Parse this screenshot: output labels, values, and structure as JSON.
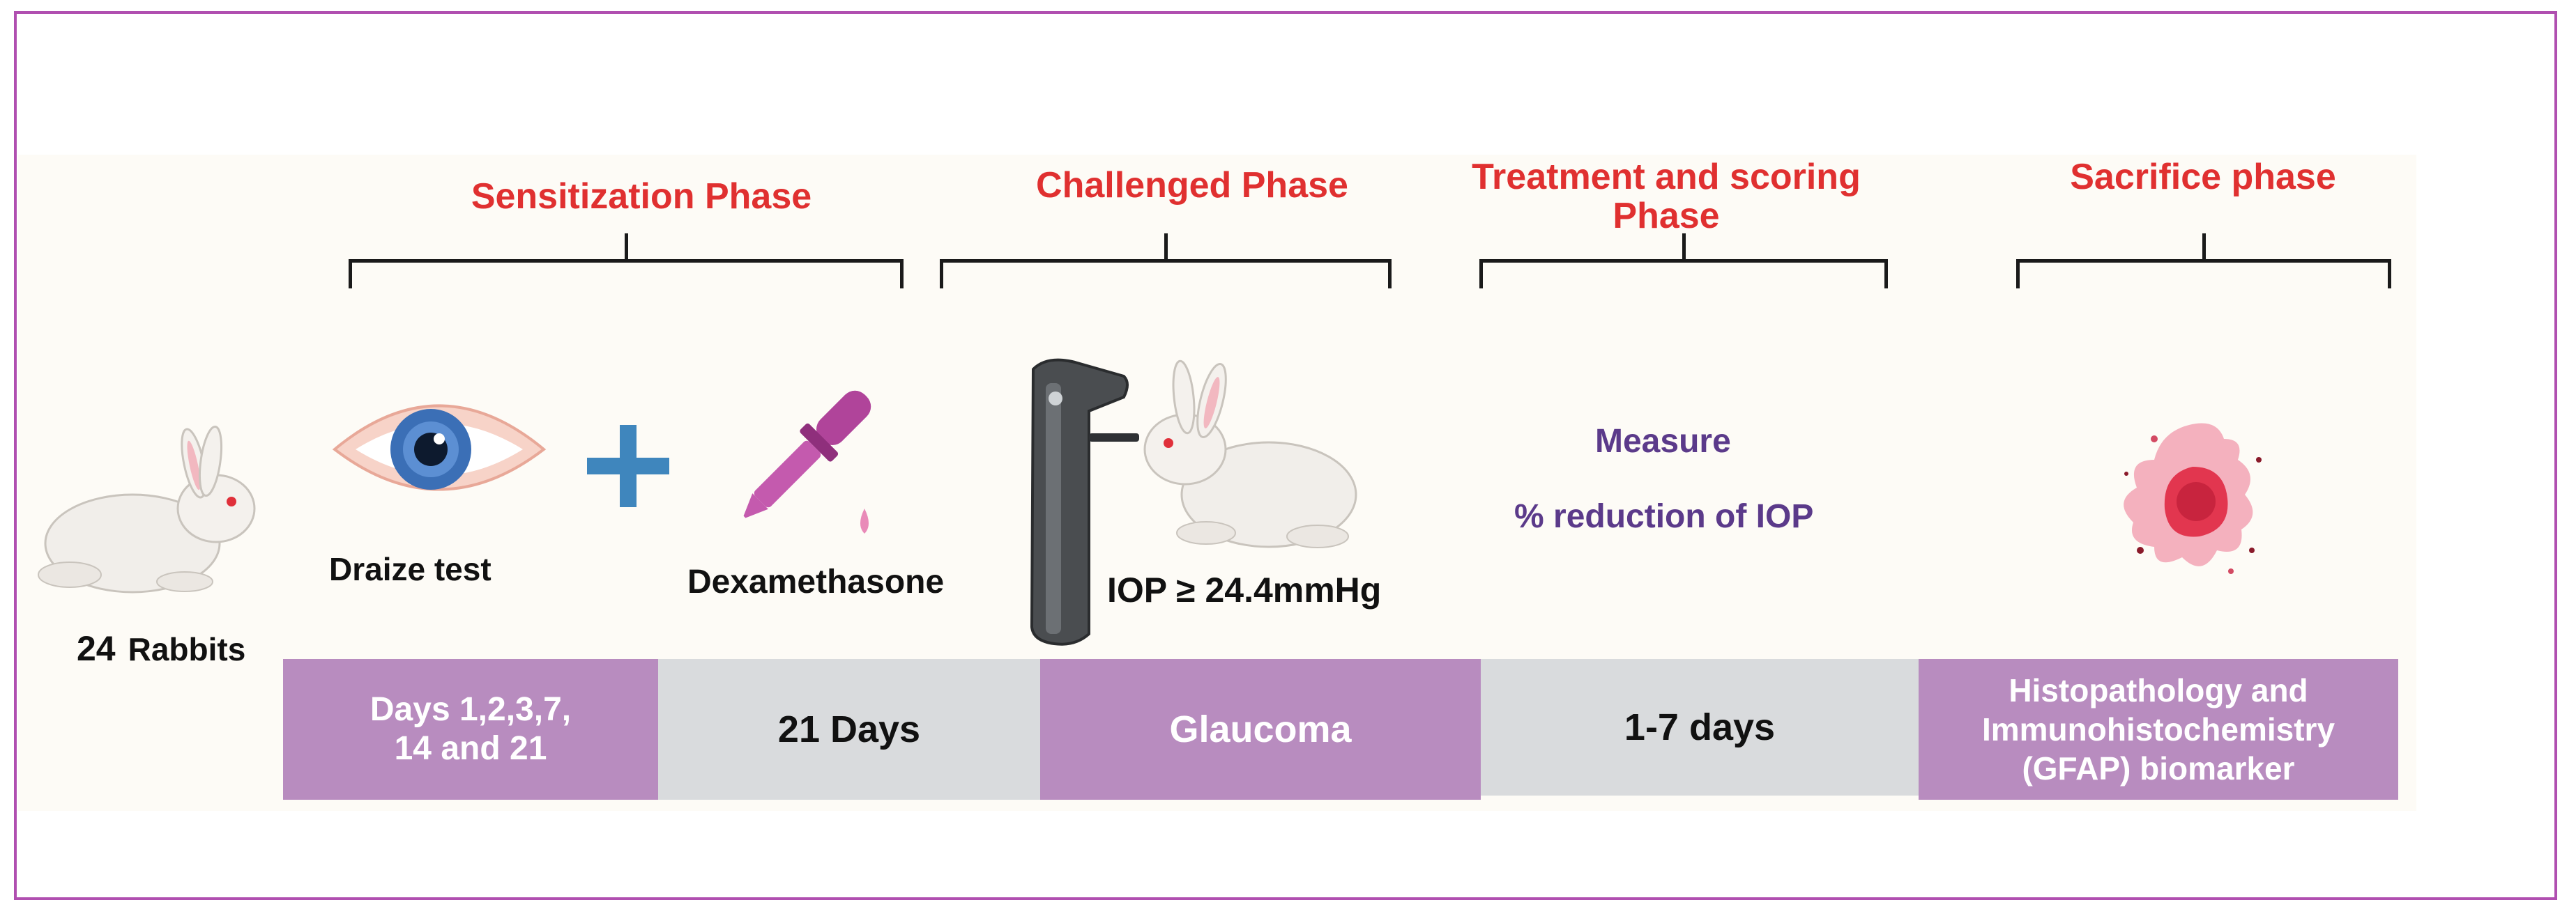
{
  "phases": {
    "sensitization": "Sensitization Phase",
    "challenged": "Challenged Phase",
    "treatment": "Treatment and scoring Phase",
    "sacrifice": "Sacrifice phase"
  },
  "labels": {
    "rabbits_count": "24",
    "rabbits_word": "Rabbits",
    "draize": "Draize test",
    "dexamethasone": "Dexamethasone",
    "iop": "IOP ≥ 24.4mmHg",
    "measure": "Measure",
    "reduction": "% reduction of IOP"
  },
  "bars": {
    "days_line1": "Days 1,2,3,7,",
    "days_line2": "14 and 21",
    "twentyone": "21 Days",
    "glaucoma": "Glaucoma",
    "oneseven": "1-7 days",
    "histo_line1": "Histopathology and",
    "histo_line2": "Immunohistochemistry",
    "histo_line3": "(GFAP) biomarker"
  },
  "colors": {
    "phase_title": "#e03030",
    "bar_purple": "#b88cbf",
    "bar_gray": "#d9dbdd",
    "measure_text": "#5b3a8a",
    "frame": "#b04fb0"
  }
}
